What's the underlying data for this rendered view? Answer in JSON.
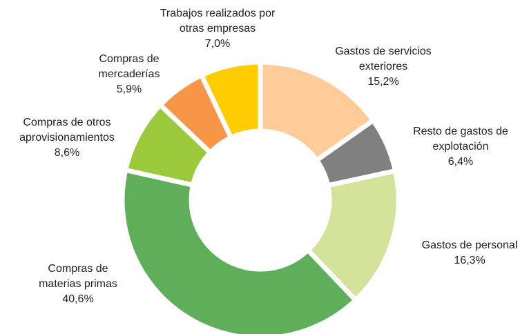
{
  "chart_data": {
    "type": "donut",
    "categories": [
      "Gastos de servicios exteriores",
      "Resto de gastos de explotación",
      "Gastos de personal",
      "Compras de materias primas",
      "Compras de otros aprovisionamientos",
      "Compras de mercaderías",
      "Trabajos realizados por otras empresas"
    ],
    "values": [
      15.2,
      6.4,
      16.3,
      40.6,
      8.6,
      5.9,
      7.0
    ],
    "value_labels": [
      "15,2%",
      "6,4%",
      "16,3%",
      "40,6%",
      "8,6%",
      "5,9%",
      "7,0%"
    ],
    "colors": [
      "#FFCC99",
      "#808080",
      "#D4E29A",
      "#5EAE5A",
      "#9BC93C",
      "#F79646",
      "#FFCC00"
    ]
  }
}
